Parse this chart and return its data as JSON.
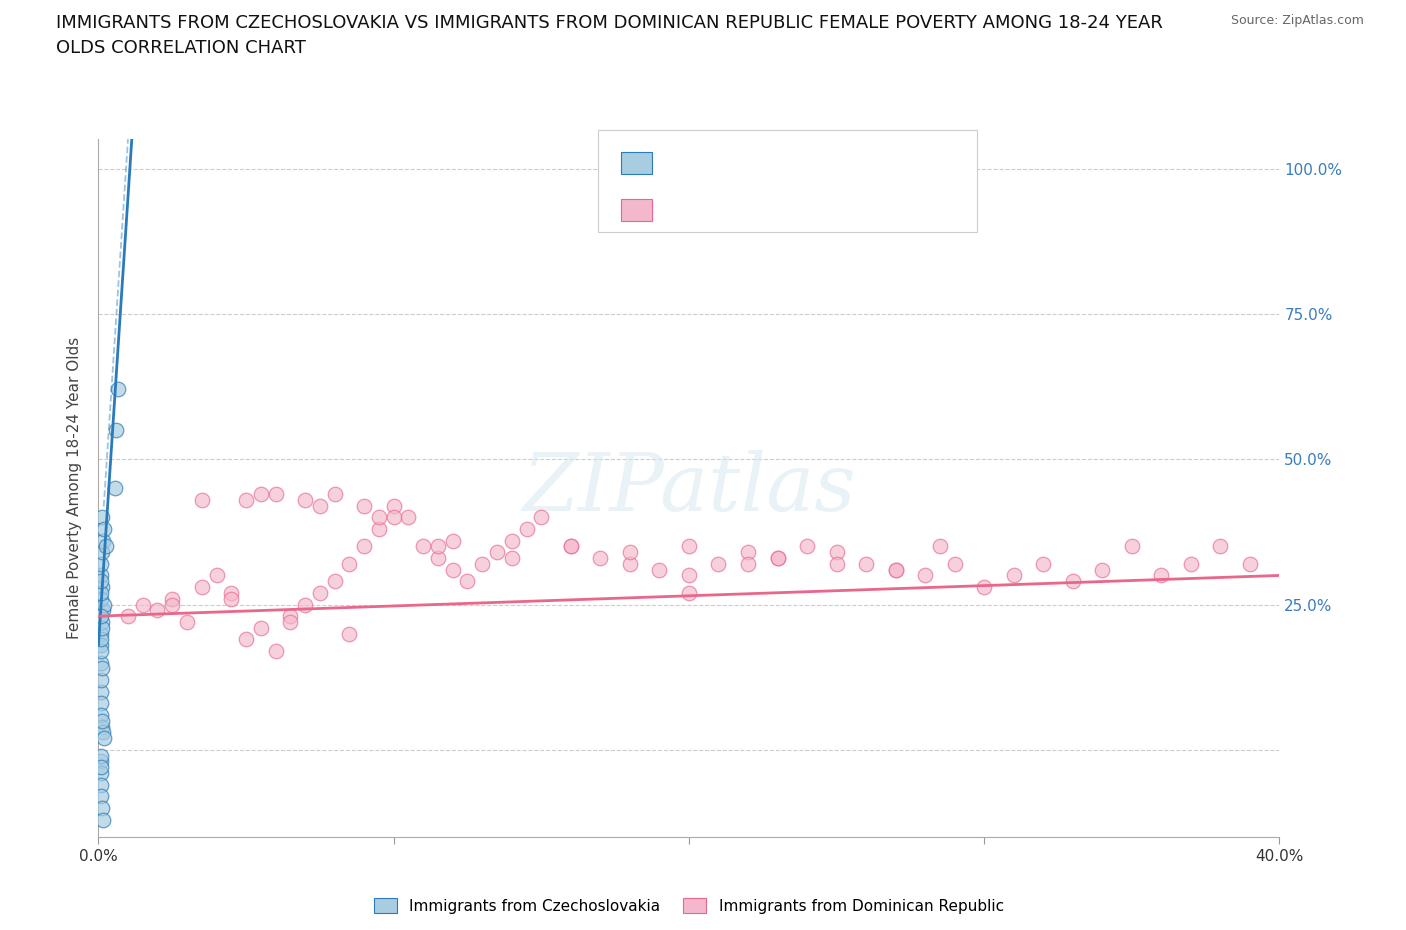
{
  "title_line1": "IMMIGRANTS FROM CZECHOSLOVAKIA VS IMMIGRANTS FROM DOMINICAN REPUBLIC FEMALE POVERTY AMONG 18-24 YEAR",
  "title_line2": "OLDS CORRELATION CHART",
  "source": "Source: ZipAtlas.com",
  "ylabel": "Female Poverty Among 18-24 Year Olds",
  "xmin": 0.0,
  "xmax": 40.0,
  "ymin": -15.0,
  "ymax": 105.0,
  "yticks": [
    0,
    25,
    50,
    75,
    100
  ],
  "ytick_labels": [
    "",
    "25.0%",
    "50.0%",
    "75.0%",
    "100.0%"
  ],
  "background_color": "#ffffff",
  "color_blue": "#a8cce0",
  "color_pink": "#f4b8cc",
  "color_blue_line": "#2b7bba",
  "color_pink_line": "#e8678a",
  "blue_scatter_x": [
    0.08,
    0.12,
    0.15,
    0.08,
    0.1,
    0.12,
    0.08,
    0.1,
    0.08,
    0.1,
    0.12,
    0.08,
    0.1,
    0.12,
    0.15,
    0.08,
    0.1,
    0.12,
    0.08,
    0.1,
    0.08,
    0.1,
    0.12,
    0.15,
    0.18,
    0.08,
    0.1,
    0.12,
    0.08,
    0.1,
    0.12,
    0.55,
    0.6,
    0.65,
    0.08,
    0.1,
    0.15,
    0.2,
    0.25,
    0.12,
    0.18
  ],
  "blue_scatter_y": [
    20,
    22,
    24,
    15,
    18,
    28,
    26,
    30,
    10,
    12,
    14,
    8,
    6,
    4,
    3,
    17,
    19,
    21,
    -2,
    -4,
    -6,
    -8,
    -10,
    -12,
    25,
    23,
    32,
    34,
    -1,
    -3,
    40,
    45,
    55,
    62,
    27,
    29,
    36,
    38,
    35,
    5,
    2
  ],
  "pink_scatter_x": [
    1.0,
    1.5,
    2.0,
    2.5,
    3.0,
    3.5,
    4.0,
    4.5,
    5.0,
    5.5,
    6.0,
    6.5,
    7.0,
    7.5,
    8.0,
    8.5,
    9.0,
    9.5,
    10.0,
    10.5,
    11.0,
    11.5,
    12.0,
    12.5,
    13.0,
    13.5,
    14.0,
    14.5,
    15.0,
    16.0,
    17.0,
    18.0,
    19.0,
    20.0,
    21.0,
    22.0,
    23.0,
    24.0,
    25.0,
    26.0,
    27.0,
    28.0,
    29.0,
    30.0,
    31.0,
    32.0,
    33.0,
    34.0,
    35.0,
    36.0,
    37.0,
    38.0,
    39.0,
    5.0,
    6.0,
    7.0,
    8.0,
    9.0,
    10.0,
    12.0,
    14.0,
    16.0,
    18.0,
    20.0,
    23.0,
    25.0,
    27.0,
    28.5,
    20.0,
    22.0,
    3.5,
    5.5,
    7.5,
    9.5,
    11.5,
    2.5,
    4.5,
    6.5,
    8.5
  ],
  "pink_scatter_y": [
    23,
    25,
    24,
    26,
    22,
    28,
    30,
    27,
    19,
    21,
    17,
    23,
    25,
    27,
    29,
    32,
    35,
    38,
    42,
    40,
    35,
    33,
    31,
    29,
    32,
    34,
    36,
    38,
    40,
    35,
    33,
    32,
    31,
    30,
    32,
    34,
    33,
    35,
    34,
    32,
    31,
    30,
    32,
    28,
    30,
    32,
    29,
    31,
    35,
    30,
    32,
    35,
    32,
    43,
    44,
    43,
    44,
    42,
    40,
    36,
    33,
    35,
    34,
    27,
    33,
    32,
    31,
    35,
    35,
    32,
    43,
    44,
    42,
    40,
    35,
    25,
    26,
    22,
    20
  ],
  "blue_trend_x0": 0.0,
  "blue_trend_y0": 18.0,
  "blue_trend_x1": 1.0,
  "blue_trend_y1": 95.0,
  "pink_trend_x0": 0.0,
  "pink_trend_y0": 23.0,
  "pink_trend_x1": 40.0,
  "pink_trend_y1": 30.0
}
